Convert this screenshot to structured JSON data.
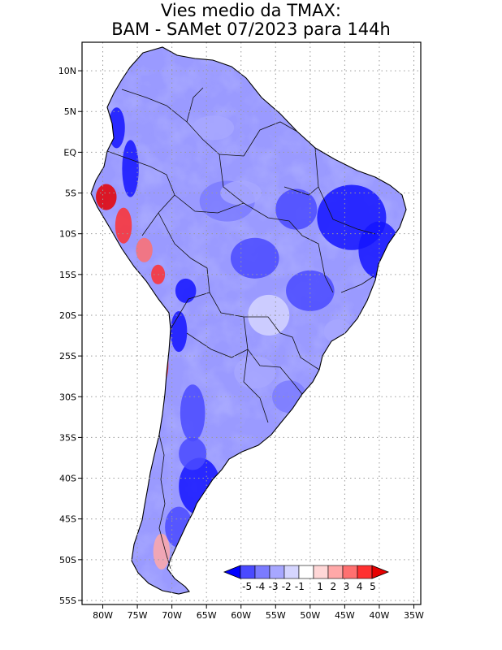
{
  "title": {
    "line1": "Vies medio da TMAX:",
    "line2": "BAM - SAMet 07/2023  para 144h"
  },
  "axes": {
    "lat_labels": [
      "10N",
      "5N",
      "EQ",
      "5S",
      "10S",
      "15S",
      "20S",
      "25S",
      "30S",
      "35S",
      "40S",
      "45S",
      "50S",
      "55S"
    ],
    "lat_values": [
      10,
      5,
      0,
      -5,
      -10,
      -15,
      -20,
      -25,
      -30,
      -35,
      -40,
      -45,
      -50,
      -55
    ],
    "lon_labels": [
      "80W",
      "75W",
      "70W",
      "65W",
      "60W",
      "55W",
      "50W",
      "45W",
      "40W",
      "35W"
    ],
    "lon_values": [
      -80,
      -75,
      -70,
      -65,
      -60,
      -55,
      -50,
      -45,
      -40,
      -35
    ],
    "lat_range": [
      -55.5,
      13.5
    ],
    "lon_range": [
      -83,
      -34
    ]
  },
  "colorbar": {
    "labels": [
      "-5",
      "-4",
      "-3",
      "-2",
      "-1",
      "1",
      "2",
      "3",
      "4",
      "5"
    ],
    "colors": [
      "#1414ff",
      "#4a4aff",
      "#7b7bff",
      "#a7a7ff",
      "#d5d5ff",
      "#ffffff",
      "#ffd7d7",
      "#ffa8a8",
      "#ff7070",
      "#ff3030",
      "#e60000"
    ],
    "low_color": "#0000ff",
    "high_color": "#e60000"
  },
  "colors": {
    "land_base": "#9a9aff",
    "ocean": "#ffffff",
    "grid": "#9a9a9a"
  }
}
